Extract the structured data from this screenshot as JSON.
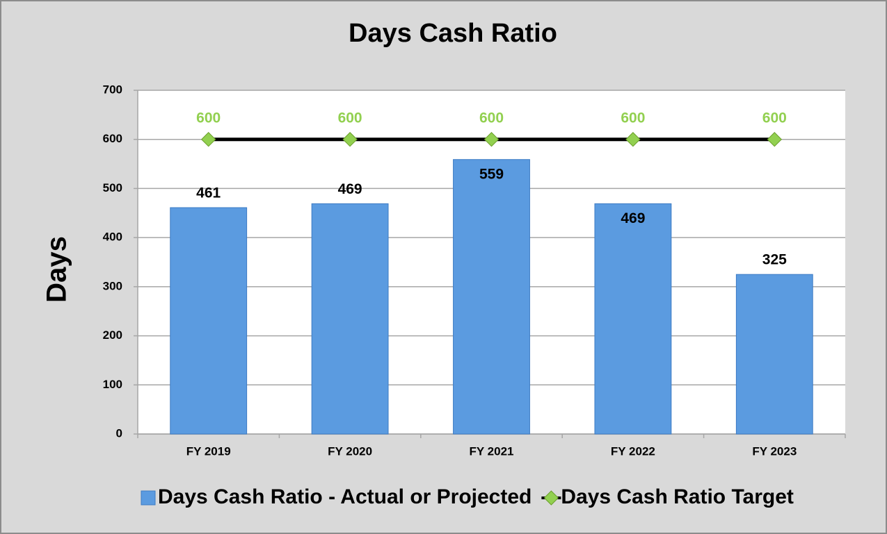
{
  "chart_data": {
    "type": "bar",
    "title": "Days Cash Ratio",
    "y_label": "Days",
    "categories": [
      "FY 2019",
      "FY 2020",
      "FY 2021",
      "FY 2022",
      "FY 2023"
    ],
    "series": [
      {
        "name": "Days Cash Ratio - Actual or Projected",
        "type": "bar",
        "color": "#5b9be0",
        "values": [
          461,
          469,
          559,
          469,
          325
        ]
      },
      {
        "name": "Days Cash Ratio Target",
        "type": "line",
        "color": "#92d050",
        "line_color": "#000000",
        "values": [
          600,
          600,
          600,
          600,
          600
        ]
      }
    ],
    "ylim": [
      0,
      700
    ],
    "yticks": [
      0,
      100,
      200,
      300,
      400,
      500,
      600,
      700
    ],
    "grid": true,
    "legend": "bottom"
  }
}
